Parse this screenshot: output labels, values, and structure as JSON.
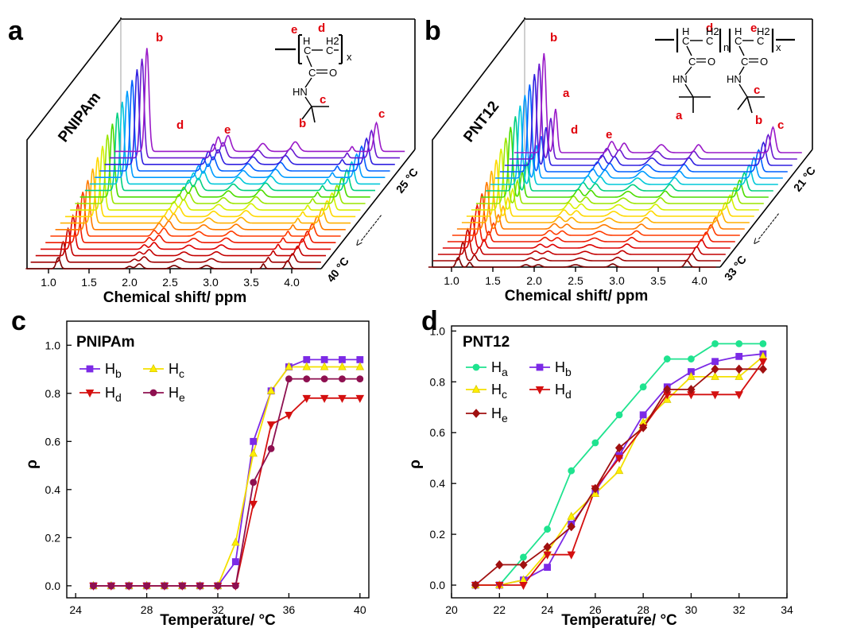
{
  "panels": {
    "a": {
      "label": "a",
      "polymer": "PNIPAm",
      "xlabel": "Chemical shift/ ppm",
      "xticks": [
        "1.0",
        "1.5",
        "2.0",
        "2.5",
        "3.0",
        "3.5",
        "4.0"
      ],
      "temp_high": "40 °C",
      "temp_low": "25 °C",
      "arrow": "<---------",
      "peak_labels": {
        "b": "b",
        "d": "d",
        "e": "e",
        "c": "c"
      },
      "structure": {
        "e": "e",
        "d": "d",
        "c": "c",
        "b": "b",
        "h": "H",
        "h2": "H2",
        "c_atom": "C",
        "x": "x",
        "o": "O",
        "hn": "HN"
      }
    },
    "b": {
      "label": "b",
      "polymer": "PNT12",
      "xlabel": "Chemical shift/ ppm",
      "xticks": [
        "1.0",
        "1.5",
        "2.0",
        "2.5",
        "3.0",
        "3.5",
        "4.0"
      ],
      "temp_high": "33 °C",
      "temp_low": "21 °C",
      "arrow": "<---------",
      "peak_labels": {
        "a": "a",
        "b": "b",
        "d": "d",
        "e": "e",
        "c": "c"
      },
      "structure": {
        "a": "a",
        "b": "b",
        "c": "c",
        "d": "d",
        "e": "e",
        "h": "H",
        "h2": "H2",
        "c_atom": "C",
        "n": "n",
        "x": "x",
        "o": "O",
        "hn": "HN"
      }
    },
    "c": {
      "label": "c",
      "polymer": "PNIPAm"
    },
    "d": {
      "label": "d",
      "polymer": "PNT12"
    }
  },
  "colors": {
    "spectra": [
      "#7a0000",
      "#a00000",
      "#c40000",
      "#dc0000",
      "#ee1a00",
      "#ff3c00",
      "#ff7a00",
      "#ffb000",
      "#ffd800",
      "#d8f000",
      "#9ae600",
      "#4cdc00",
      "#00d080",
      "#00c8d8",
      "#009cff",
      "#0060ff",
      "#3020e0",
      "#6a1ad0",
      "#9a1ac8"
    ],
    "Ha": "#1fe38f",
    "Hb": "#7c2ae6",
    "Hc": "#ffee00",
    "Hd": "#d41010",
    "He_c": "#8e1050",
    "He_d": "#a01010",
    "label_red": "#e0000a"
  },
  "chart_data": [
    {
      "type": "line",
      "panel": "c",
      "title": "PNIPAm",
      "xlabel": "Temperature/ °C",
      "ylabel": "ρ",
      "xlim": [
        23.5,
        40.5
      ],
      "ylim": [
        -0.05,
        1.1
      ],
      "xticks": [
        24,
        28,
        32,
        36,
        40
      ],
      "yticks": [
        0.0,
        0.2,
        0.4,
        0.6,
        0.8,
        1.0
      ],
      "legend_position": "top-left",
      "x": [
        25,
        26,
        27,
        28,
        29,
        30,
        31,
        32,
        33,
        34,
        35,
        36,
        37,
        38,
        39,
        40
      ],
      "series": [
        {
          "name": "Hb",
          "sub": "b",
          "marker": "square",
          "color": "#7c2ae6",
          "values": [
            0,
            0,
            0,
            0,
            0,
            0,
            0,
            0,
            0.1,
            0.6,
            0.81,
            0.91,
            0.94,
            0.94,
            0.94,
            0.94
          ]
        },
        {
          "name": "Hc",
          "sub": "c",
          "marker": "triangle-up",
          "color": "#ffee00",
          "values": [
            0,
            0,
            0,
            0,
            0,
            0,
            0,
            0,
            0.18,
            0.55,
            0.81,
            0.91,
            0.91,
            0.91,
            0.91,
            0.91
          ]
        },
        {
          "name": "Hd",
          "sub": "d",
          "marker": "triangle-down",
          "color": "#d41010",
          "values": [
            0,
            0,
            0,
            0,
            0,
            0,
            0,
            0,
            0,
            0.34,
            0.67,
            0.71,
            0.78,
            0.78,
            0.78,
            0.78
          ]
        },
        {
          "name": "He",
          "sub": "e",
          "marker": "circle",
          "color": "#8e1050",
          "values": [
            0,
            0,
            0,
            0,
            0,
            0,
            0,
            0,
            0,
            0.43,
            0.57,
            0.86,
            0.86,
            0.86,
            0.86,
            0.86
          ]
        }
      ]
    },
    {
      "type": "line",
      "panel": "d",
      "title": "PNT12",
      "xlabel": "Temperature/ °C",
      "ylabel": "ρ",
      "xlim": [
        20,
        34
      ],
      "ylim": [
        -0.05,
        1.02
      ],
      "xticks": [
        20,
        22,
        24,
        26,
        28,
        30,
        32,
        34
      ],
      "yticks": [
        0.0,
        0.2,
        0.4,
        0.6,
        0.8,
        1.0
      ],
      "legend_position": "top-left",
      "x": [
        21,
        22,
        23,
        24,
        25,
        26,
        27,
        28,
        29,
        30,
        31,
        32,
        33
      ],
      "series": [
        {
          "name": "Ha",
          "sub": "a",
          "marker": "circle",
          "color": "#1fe38f",
          "values": [
            0,
            0,
            0.11,
            0.22,
            0.45,
            0.56,
            0.67,
            0.78,
            0.89,
            0.89,
            0.95,
            0.95,
            0.95
          ]
        },
        {
          "name": "Hb",
          "sub": "b",
          "marker": "square",
          "color": "#7c2ae6",
          "values": [
            0,
            0,
            0.02,
            0.07,
            0.24,
            0.37,
            0.51,
            0.67,
            0.78,
            0.84,
            0.88,
            0.9,
            0.91
          ]
        },
        {
          "name": "Hc",
          "sub": "c",
          "marker": "triangle-up",
          "color": "#ffee00",
          "values": [
            0,
            0,
            0.02,
            0.13,
            0.27,
            0.36,
            0.45,
            0.64,
            0.73,
            0.82,
            0.82,
            0.82,
            0.9
          ]
        },
        {
          "name": "Hd",
          "sub": "d",
          "marker": "triangle-down",
          "color": "#d41010",
          "values": [
            0,
            0,
            0,
            0.12,
            0.12,
            0.38,
            0.5,
            0.62,
            0.75,
            0.75,
            0.75,
            0.75,
            0.88
          ]
        },
        {
          "name": "He",
          "sub": "e",
          "marker": "diamond",
          "color": "#a01010",
          "values": [
            0,
            0.08,
            0.08,
            0.15,
            0.23,
            0.38,
            0.54,
            0.62,
            0.77,
            0.77,
            0.85,
            0.85,
            0.85
          ]
        }
      ]
    }
  ]
}
